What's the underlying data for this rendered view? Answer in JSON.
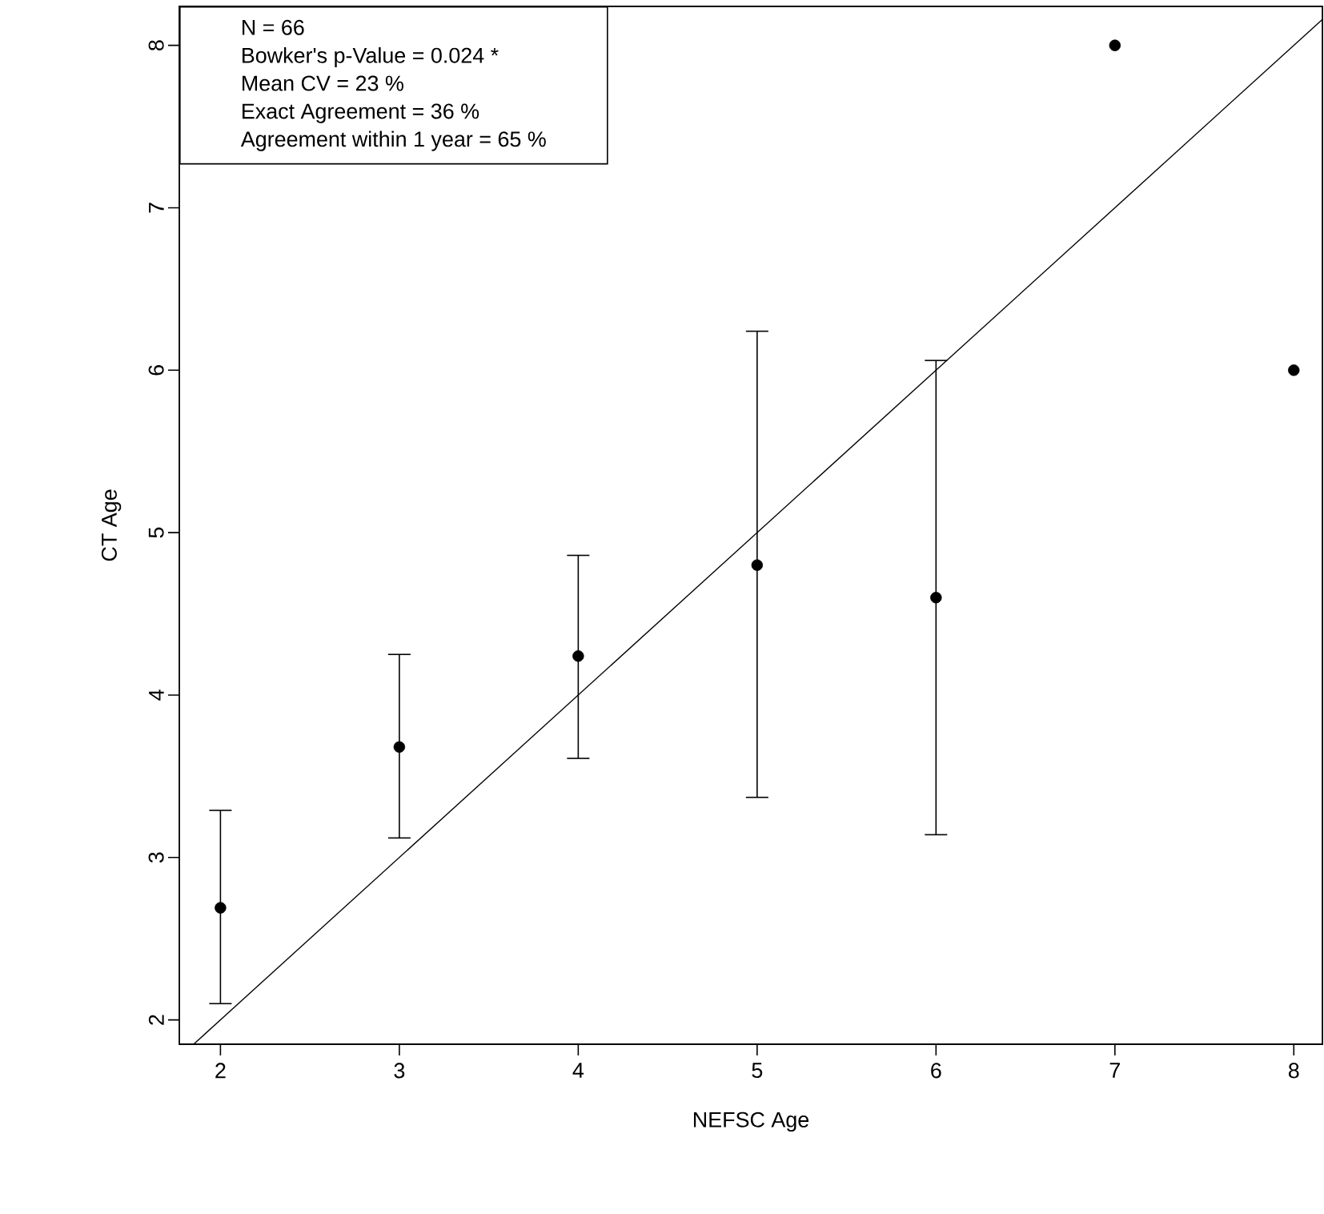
{
  "chart_data": {
    "type": "scatter",
    "xlabel": "NEFSC Age",
    "ylabel": "CT Age",
    "xlim": [
      1.77,
      8.16
    ],
    "ylim": [
      1.85,
      8.24
    ],
    "xticks": [
      2,
      3,
      4,
      5,
      6,
      7,
      8
    ],
    "yticks": [
      2,
      3,
      4,
      5,
      6,
      7,
      8
    ],
    "grid": false,
    "annotations": [
      "N =  66",
      "Bowker's p-Value =  0.024 *",
      "Mean CV =  23 %",
      "Exact Agreement =  36 %",
      "Agreement within 1 year =  65 %"
    ],
    "x": [
      2,
      3,
      4,
      5,
      6,
      7,
      8
    ],
    "series": [
      {
        "color": "#000000",
        "marker": "circle",
        "values": [
          2.69,
          3.68,
          4.24,
          4.8,
          4.6,
          8,
          6
        ],
        "errors": [
          [
            2.1,
            3.29
          ],
          [
            3.12,
            4.25
          ],
          [
            3.61,
            4.86
          ],
          [
            3.37,
            6.24
          ],
          [
            3.14,
            6.06
          ],
          null,
          null
        ]
      },
      {
        "type": "line",
        "color": "#000000",
        "x": [
          1.85,
          8.16
        ],
        "values": [
          1.85,
          8.16
        ],
        "marker": "none",
        "line_style": "solid"
      }
    ]
  }
}
